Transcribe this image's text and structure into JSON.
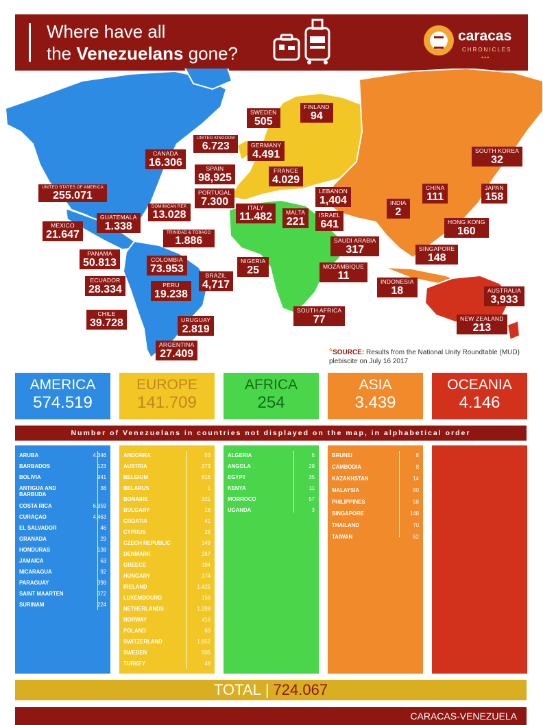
{
  "header": {
    "title_line1": "Where have all",
    "title_line2_pre": "the",
    "title_line2_bold": "Venezuelans",
    "title_line2_post": "gone?",
    "brand_name": "caracas",
    "brand_sub": "CHRONICLES",
    "brand_dots": "•••",
    "suitcase_icon": "suitcase-icon"
  },
  "colors": {
    "brand": "#8f1712",
    "america": "#2d8be3",
    "europe": "#f2c625",
    "africa": "#49d64a",
    "asia": "#f08a2b",
    "oceania": "#d2321b",
    "total_bar": "#d9ae21"
  },
  "map_labels": [
    {
      "name": "CANADA",
      "value": "16.306"
    },
    {
      "name": "UNITED STATES OF AMERICA",
      "value": "255.071"
    },
    {
      "name": "MEXICO",
      "value": "21.647"
    },
    {
      "name": "GUATEMALA",
      "value": "1.338"
    },
    {
      "name": "DOMINICAN REP.",
      "value": "13.028"
    },
    {
      "name": "TRINIDAD & TOBAGO",
      "value": "1.886"
    },
    {
      "name": "PANAMA",
      "value": "50.813"
    },
    {
      "name": "COLOMBIA",
      "value": "73.953"
    },
    {
      "name": "ECUADOR",
      "value": "28.334"
    },
    {
      "name": "PERU",
      "value": "19.238"
    },
    {
      "name": "BRAZIL",
      "value": "4,717"
    },
    {
      "name": "CHILE",
      "value": "39.728"
    },
    {
      "name": "URUGUAY",
      "value": "2.819"
    },
    {
      "name": "ARGENTINA",
      "value": "27.409"
    },
    {
      "name": "SWEDEN",
      "value": "505"
    },
    {
      "name": "FINLAND",
      "value": "94"
    },
    {
      "name": "UNITED KINGDOM",
      "value": "6.723"
    },
    {
      "name": "GERMANY",
      "value": "4.491"
    },
    {
      "name": "SPAIN",
      "value": "98,925"
    },
    {
      "name": "FRANCE",
      "value": "4.029"
    },
    {
      "name": "PORTUGAL",
      "value": "7.300"
    },
    {
      "name": "ITALY",
      "value": "11.482"
    },
    {
      "name": "MALTA",
      "value": "221"
    },
    {
      "name": "LEBANON",
      "value": "1,404"
    },
    {
      "name": "ISRAEL",
      "value": "641"
    },
    {
      "name": "SAUDI ARABIA",
      "value": "317"
    },
    {
      "name": "NIGERIA",
      "value": "25"
    },
    {
      "name": "MOZAMBIQUE",
      "value": "11"
    },
    {
      "name": "SOUTH AFRICA",
      "value": "77"
    },
    {
      "name": "INDIA",
      "value": "2"
    },
    {
      "name": "CHINA",
      "value": "111"
    },
    {
      "name": "SOUTH KOREA",
      "value": "32"
    },
    {
      "name": "JAPAN",
      "value": "158"
    },
    {
      "name": "HONG KONG",
      "value": "160"
    },
    {
      "name": "SINGAPORE",
      "value": "148"
    },
    {
      "name": "INDONESIA",
      "value": "18"
    },
    {
      "name": "AUSTRALIA",
      "value": "3,933"
    },
    {
      "name": "NEW ZEALAND",
      "value": "213"
    }
  ],
  "source": {
    "label": "SOURCE:",
    "text": "Results from the National Unity Roundtable (MUD) plebiscite on July 16 2017"
  },
  "continents": [
    {
      "name": "AMERICA",
      "value": "574.519"
    },
    {
      "name": "EUROPE",
      "value": "141.709"
    },
    {
      "name": "AFRICA",
      "value": "254"
    },
    {
      "name": "ASIA",
      "value": "3.439"
    },
    {
      "name": "OCEANIA",
      "value": "4.146"
    }
  ],
  "strip_text": "Number of Venezuelans in countries not displayed on the map, in alphabetical order",
  "lists": {
    "america": [
      [
        "ARUBA",
        "4.346"
      ],
      [
        "BARBADOS",
        "123"
      ],
      [
        "BOLIVIA",
        "941"
      ],
      [
        "ANTIGUA AND BARBUDA",
        "38"
      ],
      [
        "COSTA RICA",
        "6.959"
      ],
      [
        "CURAÇAO",
        "4.463"
      ],
      [
        "EL SALVADOR",
        "46"
      ],
      [
        "GRANADA",
        "29"
      ],
      [
        "HONDURAS",
        "138"
      ],
      [
        "JAMAICA",
        "63"
      ],
      [
        "NICARAGUA",
        "92"
      ],
      [
        "PARAGUAY",
        "398"
      ],
      [
        "SAINT MAARTEN",
        "372"
      ],
      [
        "SURINAM",
        "224"
      ]
    ],
    "europe": [
      [
        "ANDORRA",
        "53"
      ],
      [
        "AUSTRIA",
        "373"
      ],
      [
        "BELGIUM",
        "616"
      ],
      [
        "BELARUS",
        "1"
      ],
      [
        "BONAIRE",
        "321"
      ],
      [
        "BULGARY",
        "18"
      ],
      [
        "CROATIA",
        "41"
      ],
      [
        "CYPRUS",
        "28"
      ],
      [
        "CZECH REPUBLIC",
        "149"
      ],
      [
        "DENMARK",
        "287"
      ],
      [
        "GREECE",
        "194"
      ],
      [
        "HUNGARY",
        "174"
      ],
      [
        "IRELAND",
        "1.425"
      ],
      [
        "LUXEMBOURG",
        "156"
      ],
      [
        "NETHERLANDS",
        "1.398"
      ],
      [
        "NORWAY",
        "416"
      ],
      [
        "POLAND",
        "83"
      ],
      [
        "SWITZERLAND",
        "1.652"
      ],
      [
        "SWEDEN",
        "505"
      ],
      [
        "TURKEY",
        "49"
      ]
    ],
    "africa": [
      [
        "ALGERIA",
        "6"
      ],
      [
        "ANGOLA",
        "29"
      ],
      [
        "EGYPT",
        "35"
      ],
      [
        "KENYA",
        "11"
      ],
      [
        "MORROCO",
        "57"
      ],
      [
        "UGANDA",
        "3"
      ]
    ],
    "asia": [
      [
        "BRUNEI",
        "8"
      ],
      [
        "CAMBODIA",
        "8"
      ],
      [
        "KAZAKHSTAN",
        "14"
      ],
      [
        "MALAYSIA",
        "80"
      ],
      [
        "PHILIPPINES",
        "58"
      ],
      [
        "SINGAPORE",
        "148"
      ],
      [
        "THAILAND",
        "70"
      ],
      [
        "TAIWAN",
        "62"
      ]
    ]
  },
  "total": {
    "label": "TOTAL",
    "sep": "|",
    "value": "724.067"
  },
  "footer": "CARACAS-VENEZUELA"
}
